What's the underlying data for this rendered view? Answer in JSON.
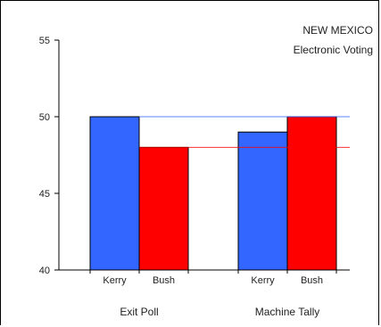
{
  "chart_data": {
    "type": "bar",
    "title_lines": [
      "NEW MEXICO",
      "Electronic Voting"
    ],
    "ylim": [
      40,
      55
    ],
    "yticks": [
      40,
      45,
      50,
      55
    ],
    "groups": [
      {
        "label": "Exit Poll",
        "bars": [
          {
            "label": "Kerry",
            "value": 50,
            "color": "#3366ff"
          },
          {
            "label": "Bush",
            "value": 48,
            "color": "#ff0000"
          }
        ]
      },
      {
        "label": "Machine Tally",
        "bars": [
          {
            "label": "Kerry",
            "value": 49,
            "color": "#3366ff"
          },
          {
            "label": "Bush",
            "value": 50,
            "color": "#ff0000"
          }
        ]
      }
    ],
    "reference_lines": [
      {
        "value": 50,
        "color": "#3366ff"
      },
      {
        "value": 48,
        "color": "#ff0000"
      }
    ],
    "grid": false
  }
}
